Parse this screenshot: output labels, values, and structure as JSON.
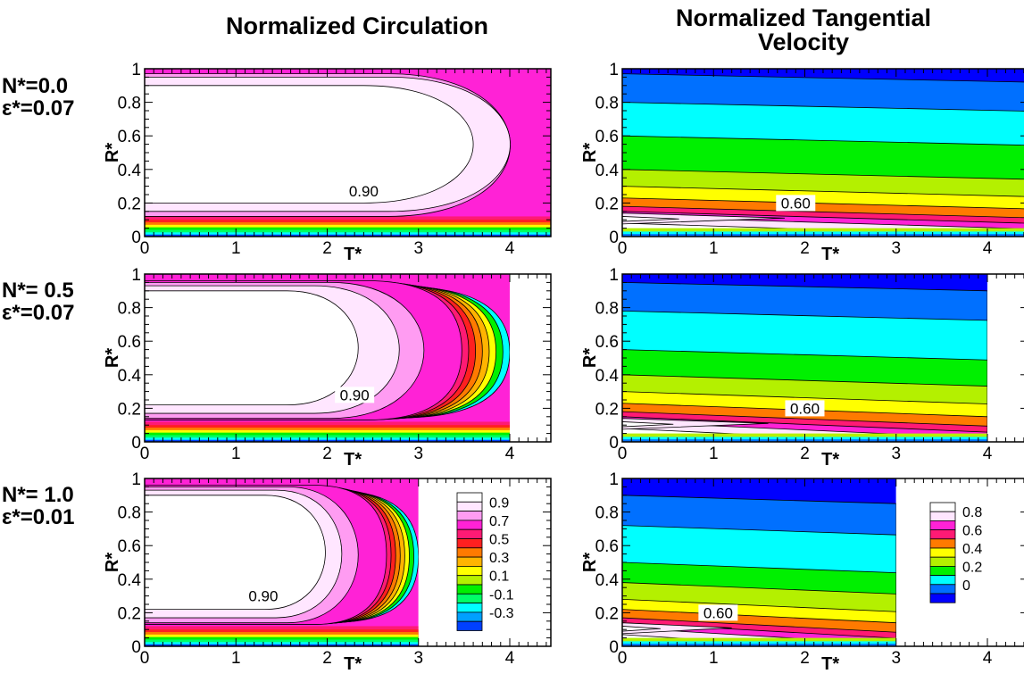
{
  "titles": {
    "left": "Normalized Circulation",
    "right_line1": "Normalized Tangential",
    "right_line2": "Velocity"
  },
  "rows": [
    {
      "n_label": "N*=0.0",
      "eps_label": "ε*=0.07"
    },
    {
      "n_label": "N*= 0.5",
      "eps_label": "ε*=0.07"
    },
    {
      "n_label": "N*= 1.0",
      "eps_label": "ε*=0.01"
    }
  ],
  "chart_data": [
    {
      "type": "heatmap",
      "variable": "Normalized Circulation",
      "N": "N*=0.0",
      "eps": "ε*=0.07",
      "xlabel": "T*",
      "ylabel": "R*",
      "xlim": [
        0,
        4.45
      ],
      "ylim": [
        0,
        1
      ],
      "xticks": [
        0,
        1,
        2,
        3,
        4
      ],
      "yticks": [
        0,
        0.2,
        0.4,
        0.6,
        0.8,
        1
      ],
      "data_extent_T": 4.45,
      "contour_labels": [
        {
          "text": "0.90",
          "T": 2.4,
          "R": 0.27
        }
      ],
      "regions": [
        {
          "level": 0.9,
          "R_low": 0.2,
          "R_high": 0.9,
          "T_tip": 4.0
        },
        {
          "level": 0.8,
          "R_low": 0.15,
          "R_high": 0.95,
          "T_tip": 4.45
        },
        {
          "level": 0.7,
          "R_low": 0.12,
          "R_high": 0.97,
          "T_tip": 4.45
        }
      ]
    },
    {
      "type": "heatmap",
      "variable": "Normalized Tangential Velocity",
      "N": "N*=0.0",
      "eps": "ε*=0.07",
      "xlabel": "T*",
      "ylabel": "R*",
      "xlim": [
        0,
        4.45
      ],
      "ylim": [
        0,
        1
      ],
      "xticks": [
        0,
        1,
        2,
        3,
        4
      ],
      "yticks": [
        0,
        0.2,
        0.4,
        0.6,
        0.8,
        1
      ],
      "data_extent_T": 4.45,
      "contour_labels": [
        {
          "text": "0.60",
          "T": 1.9,
          "R": 0.2
        }
      ],
      "band_boundaries_R": [
        0.97,
        0.8,
        0.6,
        0.4,
        0.3,
        0.23,
        0.18,
        0.15,
        0.12,
        0.08
      ]
    },
    {
      "type": "heatmap",
      "variable": "Normalized Circulation",
      "N": "N*= 0.5",
      "eps": "ε*=0.07",
      "xlabel": "T*",
      "ylabel": "R*",
      "xlim": [
        0,
        4.45
      ],
      "ylim": [
        0,
        1
      ],
      "xticks": [
        0,
        1,
        2,
        3,
        4
      ],
      "yticks": [
        0,
        0.2,
        0.4,
        0.6,
        0.8,
        1
      ],
      "data_extent_T": 4.0,
      "contour_labels": [
        {
          "text": "0.90",
          "T": 2.3,
          "R": 0.28
        }
      ],
      "regions": [
        {
          "level": 0.9,
          "R_low": 0.22,
          "R_high": 0.9,
          "T_tip": 2.6
        },
        {
          "level": 0.8,
          "R_low": 0.17,
          "R_high": 0.93,
          "T_tip": 3.1
        },
        {
          "level": 0.7,
          "R_low": 0.14,
          "R_high": 0.95,
          "T_tip": 3.4
        }
      ]
    },
    {
      "type": "heatmap",
      "variable": "Normalized Tangential Velocity",
      "N": "N*= 0.5",
      "eps": "ε*=0.07",
      "xlabel": "T*",
      "ylabel": "R*",
      "xlim": [
        0,
        4.45
      ],
      "ylim": [
        0,
        1
      ],
      "xticks": [
        0,
        1,
        2,
        3,
        4
      ],
      "yticks": [
        0,
        0.2,
        0.4,
        0.6,
        0.8,
        1
      ],
      "data_extent_T": 4.0,
      "contour_labels": [
        {
          "text": "0.60",
          "T": 2.0,
          "R": 0.2
        }
      ],
      "band_boundaries_R": [
        0.95,
        0.78,
        0.55,
        0.4,
        0.3,
        0.23,
        0.18,
        0.15,
        0.12,
        0.08
      ]
    },
    {
      "type": "heatmap",
      "variable": "Normalized Circulation",
      "N": "N*= 1.0",
      "eps": "ε*=0.01",
      "xlabel": "T*",
      "ylabel": "R*",
      "xlim": [
        0,
        4.45
      ],
      "ylim": [
        0,
        1
      ],
      "xticks": [
        0,
        1,
        2,
        3,
        4
      ],
      "yticks": [
        0,
        0.2,
        0.4,
        0.6,
        0.8,
        1
      ],
      "data_extent_T": 3.0,
      "contour_labels": [
        {
          "text": "0.90",
          "T": 1.3,
          "R": 0.3
        }
      ],
      "regions": [
        {
          "level": 0.9,
          "R_low": 0.22,
          "R_high": 0.9,
          "T_tip": 2.2
        },
        {
          "level": 0.8,
          "R_low": 0.17,
          "R_high": 0.93,
          "T_tip": 2.4
        },
        {
          "level": 0.7,
          "R_low": 0.14,
          "R_high": 0.95,
          "T_tip": 2.6
        }
      ]
    },
    {
      "type": "heatmap",
      "variable": "Normalized Tangential Velocity",
      "N": "N*= 1.0",
      "eps": "ε*=0.01",
      "xlabel": "T*",
      "ylabel": "R*",
      "xlim": [
        0,
        4.45
      ],
      "ylim": [
        0,
        1
      ],
      "xticks": [
        0,
        1,
        2,
        3,
        4
      ],
      "yticks": [
        0,
        0.2,
        0.4,
        0.6,
        0.8,
        1
      ],
      "data_extent_T": 3.0,
      "contour_labels": [
        {
          "text": "0.60",
          "T": 1.05,
          "R": 0.2
        }
      ],
      "band_boundaries_R": [
        0.9,
        0.72,
        0.5,
        0.38,
        0.28,
        0.22,
        0.17,
        0.14,
        0.11,
        0.07
      ]
    }
  ],
  "legends": {
    "circulation": {
      "levels": [
        "0.9",
        "0.7",
        "0.5",
        "0.3",
        "0.1",
        "-0.1",
        "-0.3"
      ],
      "colors": [
        "#ffffff",
        "#ffe6ff",
        "#ff9cf2",
        "#ff22d6",
        "#ff1a74",
        "#ff2020",
        "#ff7a00",
        "#ffb400",
        "#ffff00",
        "#b4f000",
        "#00f000",
        "#00ff66",
        "#00ffff",
        "#00a0ff",
        "#0040ff"
      ]
    },
    "velocity": {
      "levels": [
        "0.8",
        "0.6",
        "0.4",
        "0.2",
        "0"
      ],
      "colors": [
        "#ffffff",
        "#ffe6ff",
        "#ff22d6",
        "#ff1a74",
        "#ff7a00",
        "#ffff00",
        "#b4f000",
        "#00f000",
        "#00ffff",
        "#0070ff",
        "#0000ff"
      ]
    }
  }
}
